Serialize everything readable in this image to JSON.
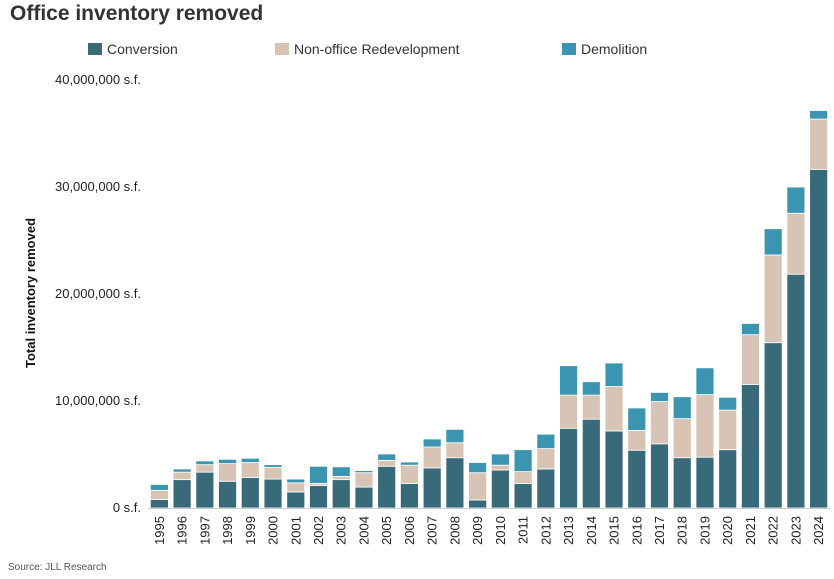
{
  "chart_data": {
    "type": "bar",
    "stacked": true,
    "title": "Office inventory removed",
    "ylabel": "Total inventory removed",
    "xlabel": "",
    "ylim": [
      0,
      40000000
    ],
    "y_ticks": [
      "0 s.f.",
      "10,000,000 s.f.",
      "20,000,000 s.f.",
      "30,000,000 s.f.",
      "40,000,000 s.f."
    ],
    "y_tick_values": [
      0,
      10000000,
      20000000,
      30000000,
      40000000
    ],
    "grid": false,
    "legend_position": "top",
    "categories": [
      "1995",
      "1996",
      "1997",
      "1998",
      "1999",
      "2000",
      "2001",
      "2002",
      "2003",
      "2004",
      "2005",
      "2006",
      "2007",
      "2008",
      "2009",
      "2010",
      "2011",
      "2012",
      "2013",
      "2014",
      "2015",
      "2016",
      "2017",
      "2018",
      "2019",
      "2020",
      "2021",
      "2022",
      "2023",
      "2024"
    ],
    "series": [
      {
        "name": "Conversion",
        "color": "#386a7a",
        "values": [
          800000,
          2650000,
          3350000,
          2500000,
          2850000,
          2700000,
          1500000,
          2100000,
          2650000,
          1950000,
          3900000,
          2300000,
          3750000,
          4700000,
          750000,
          3550000,
          2300000,
          3650000,
          7450000,
          8300000,
          7200000,
          5400000,
          6000000,
          4700000,
          4750000,
          5450000,
          11550000,
          15450000,
          21850000,
          31650000
        ]
      },
      {
        "name": "Non-office Redevelopment",
        "color": "#d8c4b4",
        "values": [
          850000,
          700000,
          700000,
          1650000,
          1400000,
          1100000,
          850000,
          200000,
          300000,
          1350000,
          550000,
          1700000,
          1950000,
          1400000,
          2550000,
          450000,
          1100000,
          1900000,
          3100000,
          2250000,
          4150000,
          1850000,
          3950000,
          3650000,
          5850000,
          3700000,
          4650000,
          8200000,
          5700000,
          4700000
        ]
      },
      {
        "name": "Demolition",
        "color": "#3b95b1",
        "values": [
          550000,
          300000,
          350000,
          400000,
          400000,
          250000,
          350000,
          1600000,
          900000,
          200000,
          600000,
          300000,
          750000,
          1250000,
          950000,
          1050000,
          2050000,
          1350000,
          2750000,
          1250000,
          2200000,
          2100000,
          850000,
          2050000,
          2500000,
          1200000,
          1050000,
          2450000,
          2450000,
          800000
        ]
      }
    ]
  },
  "source": "Source: JLL Research"
}
